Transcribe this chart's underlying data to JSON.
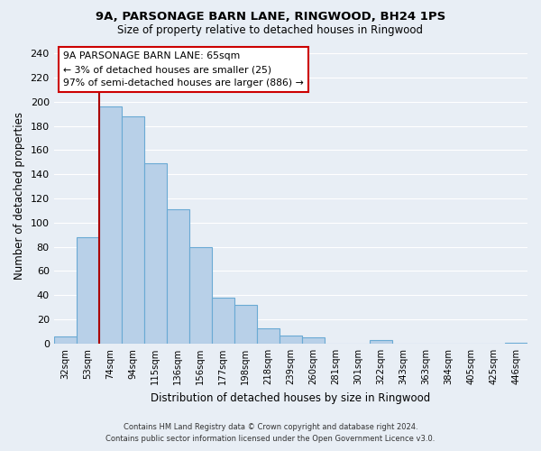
{
  "title": "9A, PARSONAGE BARN LANE, RINGWOOD, BH24 1PS",
  "subtitle": "Size of property relative to detached houses in Ringwood",
  "xlabel": "Distribution of detached houses by size in Ringwood",
  "ylabel": "Number of detached properties",
  "bar_labels": [
    "32sqm",
    "53sqm",
    "74sqm",
    "94sqm",
    "115sqm",
    "136sqm",
    "156sqm",
    "177sqm",
    "198sqm",
    "218sqm",
    "239sqm",
    "260sqm",
    "281sqm",
    "301sqm",
    "322sqm",
    "343sqm",
    "363sqm",
    "384sqm",
    "405sqm",
    "425sqm",
    "446sqm"
  ],
  "bar_values": [
    6,
    88,
    196,
    188,
    149,
    111,
    80,
    38,
    32,
    13,
    7,
    5,
    0,
    0,
    3,
    0,
    0,
    0,
    0,
    0,
    1
  ],
  "bar_color": "#b8d0e8",
  "bar_edge_color": "#6aaad4",
  "property_line_label": "9A PARSONAGE BARN LANE: 65sqm",
  "annotation_smaller": "← 3% of detached houses are smaller (25)",
  "annotation_larger": "97% of semi-detached houses are larger (886) →",
  "annotation_box_color": "#ffffff",
  "annotation_box_edge": "#cc0000",
  "vline_color": "#aa0000",
  "ylim": [
    0,
    245
  ],
  "yticks": [
    0,
    20,
    40,
    60,
    80,
    100,
    120,
    140,
    160,
    180,
    200,
    220,
    240
  ],
  "footer_line1": "Contains HM Land Registry data © Crown copyright and database right 2024.",
  "footer_line2": "Contains public sector information licensed under the Open Government Licence v3.0.",
  "background_color": "#e8eef5"
}
